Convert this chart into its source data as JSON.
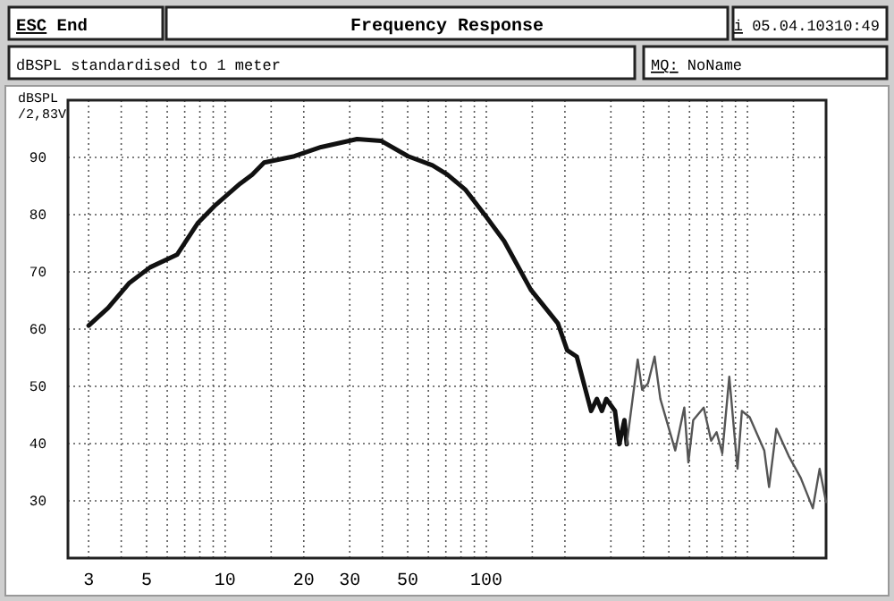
{
  "chart_data": {
    "type": "line",
    "title": "Frequency Response",
    "ylabel": "dBSPL\n/2,83V",
    "annotations": [
      "ESC End",
      "i 05.04.10310:49",
      "dBSPL standardised to 1 meter",
      "MQ: NoName"
    ],
    "log": "x",
    "grid": true,
    "marker": "none",
    "line_style": "solid",
    "xlim": [
      2.5,
      2000
    ],
    "xticks": [
      3,
      {
        "value": 4,
        "label": null
      },
      5,
      {
        "value": 6,
        "label": null
      },
      {
        "value": 7,
        "label": null
      },
      {
        "value": 8,
        "label": null
      },
      {
        "value": 9,
        "label": null
      },
      10,
      {
        "value": 15,
        "label": null
      },
      20,
      30,
      {
        "value": 40,
        "label": null
      },
      50,
      {
        "value": 60,
        "label": null
      },
      {
        "value": 70,
        "label": null
      },
      {
        "value": 80,
        "label": null
      },
      {
        "value": 90,
        "label": null
      },
      100,
      {
        "value": 150,
        "label": null
      },
      {
        "value": 200,
        "label": null
      },
      {
        "value": 300,
        "label": null
      },
      {
        "value": 400,
        "label": null
      },
      {
        "value": 500,
        "label": null
      },
      {
        "value": 600,
        "label": null
      },
      {
        "value": 700,
        "label": null
      },
      {
        "value": 800,
        "label": null
      },
      {
        "value": 900,
        "label": null
      },
      {
        "value": 1000,
        "label": null
      },
      {
        "value": 1500,
        "label": null
      }
    ],
    "ylim": [
      20,
      100
    ],
    "yticks": [
      30,
      40,
      50,
      60,
      70,
      80,
      90
    ],
    "series": [
      {
        "color": "#111111",
        "x": [
          3,
          3.56,
          4.28,
          5.16,
          6.54,
          7.85,
          9.2,
          11.4,
          12.7,
          14.1,
          18.4,
          23.3,
          32,
          39.5,
          50.2,
          62.2,
          70.9,
          83,
          100,
          117,
          148,
          188,
          204,
          222,
          252,
          265,
          277,
          288,
          311,
          323,
          338,
          345
        ],
        "values": [
          60.6,
          63.7,
          68,
          70.8,
          73,
          78.5,
          81.7,
          85.4,
          87,
          89.1,
          90.2,
          91.8,
          93.2,
          92.9,
          90.2,
          88.6,
          87,
          84.4,
          79.6,
          75.4,
          66.9,
          61,
          56.3,
          55.2,
          45.7,
          47.8,
          45.7,
          47.8,
          45.7,
          39.9,
          44.1,
          39.9
        ]
      },
      {
        "color": "#555555",
        "x": [
          345,
          380,
          395,
          416,
          441,
          464,
          529,
          573,
          594,
          620,
          680,
          726,
          762,
          801,
          852,
          916,
          952,
          1020,
          1160,
          1210,
          1290,
          1440,
          1600,
          1780,
          1890,
          2000
        ],
        "values": [
          39.9,
          54.7,
          49.4,
          50.5,
          55.2,
          47.8,
          38.8,
          46.3,
          36.7,
          44.1,
          46.3,
          40.5,
          42,
          38.3,
          51.7,
          35.6,
          45.7,
          44.6,
          38.8,
          32.4,
          42.6,
          37.8,
          34,
          28.7,
          35.6,
          29.8
        ]
      }
    ]
  }
}
